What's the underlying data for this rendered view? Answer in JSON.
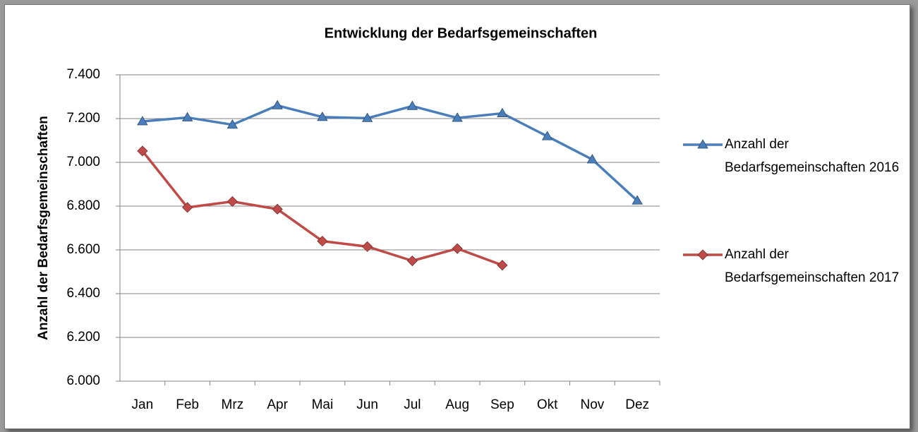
{
  "chart_data": {
    "type": "line",
    "title": "Entwicklung der Bedarfsgemeinschaften",
    "y_label": "Anzahl der Bedarfsgemeinschaften",
    "categories": [
      "Jan",
      "Feb",
      "Mrz",
      "Apr",
      "Mai",
      "Jun",
      "Jul",
      "Aug",
      "Sep",
      "Okt",
      "Nov",
      "Dez"
    ],
    "series": [
      {
        "name": "Anzahl der Bedarfsgemeinschaften 2016",
        "color": "#4a7ebb",
        "marker": "triangle",
        "values": [
          7187,
          7205,
          7172,
          7260,
          7207,
          7202,
          7257,
          7203,
          7224,
          7119,
          7013,
          6825
        ]
      },
      {
        "name": "Anzahl der Bedarfsgemeinschaften 2017",
        "color": "#be4b48",
        "marker": "diamond",
        "values": [
          7052,
          6794,
          6821,
          6786,
          6640,
          6615,
          6550,
          6606,
          6530,
          null,
          null,
          null
        ]
      }
    ],
    "ylim": [
      6000,
      7400
    ],
    "yticks": [
      {
        "value": 6000,
        "label": "6.000"
      },
      {
        "value": 6200,
        "label": "6.200"
      },
      {
        "value": 6400,
        "label": "6.400"
      },
      {
        "value": 6600,
        "label": "6.600"
      },
      {
        "value": 6800,
        "label": "6.800"
      },
      {
        "value": 7000,
        "label": "7.000"
      },
      {
        "value": 7200,
        "label": "7.200"
      },
      {
        "value": 7400,
        "label": "7.400"
      }
    ],
    "grid": true,
    "legend": "right"
  }
}
